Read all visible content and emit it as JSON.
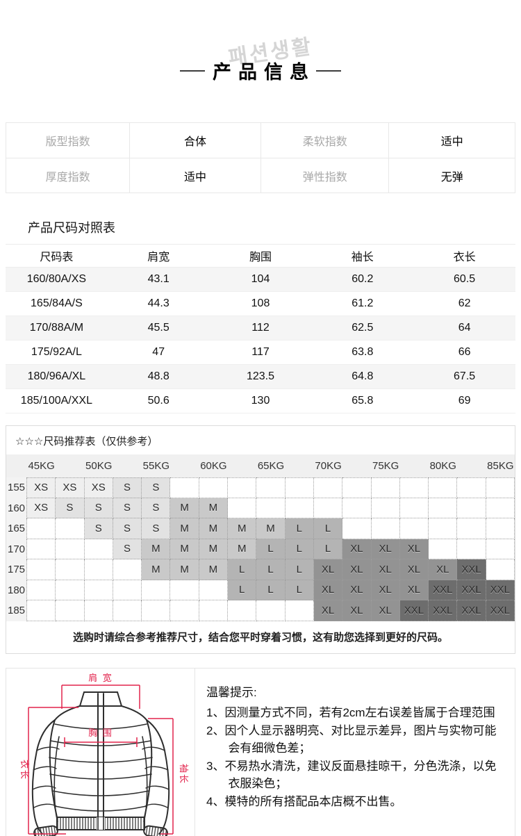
{
  "watermark": "패션생활",
  "page_title": "产品信息",
  "indices": {
    "rows": [
      [
        {
          "label": "版型指数",
          "value": "合体"
        },
        {
          "label": "柔软指数",
          "value": "适中"
        }
      ],
      [
        {
          "label": "厚度指数",
          "value": "适中"
        },
        {
          "label": "弹性指数",
          "value": "无弹"
        }
      ]
    ]
  },
  "size_table": {
    "heading": "产品尺码对照表",
    "columns": [
      "尺码表",
      "肩宽",
      "胸围",
      "袖长",
      "衣长"
    ],
    "rows": [
      [
        "160/80A/XS",
        "43.1",
        "104",
        "60.2",
        "60.5"
      ],
      [
        "165/84A/S",
        "44.3",
        "108",
        "61.2",
        "62"
      ],
      [
        "170/88A/M",
        "45.5",
        "112",
        "62.5",
        "64"
      ],
      [
        "175/92A/L",
        "47",
        "117",
        "63.8",
        "66"
      ],
      [
        "180/96A/XL",
        "48.8",
        "123.5",
        "64.8",
        "67.5"
      ],
      [
        "185/100A/XXL",
        "50.6",
        "130",
        "65.8",
        "69"
      ]
    ]
  },
  "recommend": {
    "title": "☆☆☆尺码推荐表（仅供参考）",
    "weights": [
      "45KG",
      "50KG",
      "55KG",
      "60KG",
      "65KG",
      "70KG",
      "75KG",
      "80KG",
      "85KG"
    ],
    "rows": [
      {
        "height": "155",
        "cells": [
          "XS",
          "XS",
          "XS",
          "S",
          "S",
          "",
          "",
          "",
          "",
          "",
          "",
          "",
          "",
          "",
          "",
          "",
          ""
        ]
      },
      {
        "height": "160",
        "cells": [
          "XS",
          "S",
          "S",
          "S",
          "S",
          "M",
          "M",
          "",
          "",
          "",
          "",
          "",
          "",
          "",
          "",
          "",
          ""
        ]
      },
      {
        "height": "165",
        "cells": [
          "",
          "",
          "S",
          "S",
          "S",
          "M",
          "M",
          "M",
          "M",
          "L",
          "L",
          "",
          "",
          "",
          "",
          "",
          ""
        ]
      },
      {
        "height": "170",
        "cells": [
          "",
          "",
          "",
          "S",
          "M",
          "M",
          "M",
          "M",
          "L",
          "L",
          "L",
          "XL",
          "XL",
          "XL",
          "",
          "",
          ""
        ]
      },
      {
        "height": "175",
        "cells": [
          "",
          "",
          "",
          "",
          "M",
          "M",
          "M",
          "L",
          "L",
          "L",
          "XL",
          "XL",
          "XL",
          "XL",
          "XL",
          "XXL",
          ""
        ]
      },
      {
        "height": "180",
        "cells": [
          "",
          "",
          "",
          "",
          "",
          "",
          "",
          "L",
          "L",
          "L",
          "XL",
          "XL",
          "XL",
          "XL",
          "XXL",
          "XXL",
          "XXL"
        ]
      },
      {
        "height": "185",
        "cells": [
          "",
          "",
          "",
          "",
          "",
          "",
          "",
          "",
          "",
          "",
          "XL",
          "XL",
          "XL",
          "XXL",
          "XXL",
          "XXL",
          "XXL"
        ]
      }
    ],
    "size_colors": {
      "XS": "#efefef",
      "S": "#e2e2e2",
      "M": "#c9c9c9",
      "L": "#b4b4b4",
      "XL": "#939393",
      "XXL": "#6d6d6d"
    },
    "note": "选购时请综合参考推荐尺寸，结合您平时穿着习惯，这有助您选择到更好的尺码。"
  },
  "diagram": {
    "labels": {
      "shoulder": "肩 宽",
      "chest": "胸 围",
      "length": "衣长",
      "sleeve": "袖长"
    },
    "accent_color": "#e2234c",
    "line_color": "#2e2e2e"
  },
  "tips": {
    "heading": "温馨提示:",
    "items": [
      "1、因测量方式不同，若有2cm左右误差皆属于合理范围",
      "2、因个人显示器明亮、对比显示差异，图片与实物可能会有细微色差；",
      "3、不易热水清洗，建议反面悬挂晾干，分色洗涤，以免衣服染色；",
      "4、模特的所有搭配品本店概不出售。"
    ]
  }
}
